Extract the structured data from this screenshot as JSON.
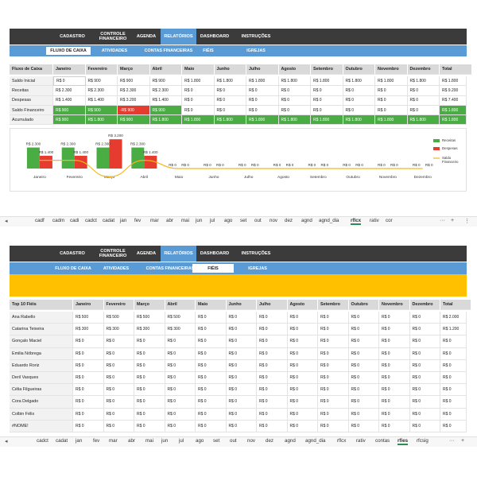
{
  "top": {
    "nav": [
      "CADASTRO",
      "CONTROLE\nFINANCEIRO",
      "AGENDA",
      "RELATÓRIOS",
      "DASHBOARD",
      "INSTRUÇÕES"
    ],
    "active_nav": 3,
    "subnav": [
      "FLUXO DE CAIXA",
      "ATIVIDADES",
      "CONTAS FINANCEIRAS",
      "FIÉIS",
      "IGREJAS"
    ],
    "active_sub": 0,
    "header": [
      "Fluxo de Caixa",
      "Janeiro",
      "Fevereiro",
      "Março",
      "Abril",
      "Maio",
      "Junho",
      "Julho",
      "Agosto",
      "Setembro",
      "Outubro",
      "Novembro",
      "Dezembro",
      "Total"
    ],
    "rows": [
      {
        "label": "Saldo Inicial",
        "cells": [
          "R$ 0",
          "R$ 900",
          "R$ 900",
          "R$ 900",
          "R$ 1.800",
          "R$ 1.800",
          "R$ 1.800",
          "R$ 1.800",
          "R$ 1.800",
          "R$ 1.800",
          "R$ 1.800",
          "R$ 1.800"
        ],
        "total": "R$ 1.800",
        "style": "initial"
      },
      {
        "label": "Receitas",
        "cells": [
          "R$ 2.300",
          "R$ 2.300",
          "R$ 2.300",
          "R$ 2.300",
          "R$ 0",
          "R$ 0",
          "R$ 0",
          "R$ 0",
          "R$ 0",
          "R$ 0",
          "R$ 0",
          "R$ 0"
        ],
        "total": "R$ 9.200",
        "style": "plain"
      },
      {
        "label": "Despesas",
        "cells": [
          "R$ 1.400",
          "R$ 1.400",
          "R$ 3.200",
          "R$ 1.400",
          "R$ 0",
          "R$ 0",
          "R$ 0",
          "R$ 0",
          "R$ 0",
          "R$ 0",
          "R$ 0",
          "R$ 0"
        ],
        "total": "R$ 7.400",
        "style": "plain"
      },
      {
        "label": "Saldo Financeiro",
        "cells": [
          "R$ 900",
          "R$ 900",
          "-R$ 900",
          "R$ 900",
          "R$ 0",
          "R$ 0",
          "R$ 0",
          "R$ 0",
          "R$ 0",
          "R$ 0",
          "R$ 0",
          "R$ 0"
        ],
        "total": "R$ 1.800",
        "style": "saldo"
      },
      {
        "label": "Acumulado",
        "cells": [
          "R$ 900",
          "R$ 1.800",
          "R$ 900",
          "R$ 1.800",
          "R$ 1.800",
          "R$ 1.800",
          "R$ 1.800",
          "R$ 1.800",
          "R$ 1.800",
          "R$ 1.800",
          "R$ 1.800",
          "R$ 1.800"
        ],
        "total": "R$ 1.800",
        "style": "acum"
      }
    ],
    "sheet_tabs": [
      "cadf",
      "cadm",
      "cadi",
      "cadct",
      "cadat",
      "jan",
      "fev",
      "mar",
      "abr",
      "mai",
      "jun",
      "jul",
      "ago",
      "set",
      "out",
      "nov",
      "dez",
      "agnd",
      "agnd_dia",
      "rflcx",
      "rativ",
      "cor"
    ],
    "active_sheet": 19
  },
  "chart_data": {
    "type": "bar",
    "categories": [
      "Janeiro",
      "Fevereiro",
      "Março",
      "Abril",
      "Maio",
      "Junho",
      "Julho",
      "Agosto",
      "Setembro",
      "Outubro",
      "Novembro",
      "Dezembro"
    ],
    "series": [
      {
        "name": "Receitas",
        "values": [
          2300,
          2300,
          2300,
          2300,
          0,
          0,
          0,
          0,
          0,
          0,
          0,
          0
        ],
        "color": "#4aad44"
      },
      {
        "name": "Despesas",
        "values": [
          1400,
          1400,
          3200,
          1400,
          0,
          0,
          0,
          0,
          0,
          0,
          0,
          0
        ],
        "color": "#e63c2f"
      },
      {
        "name": "Saldo Financeiro",
        "values": [
          900,
          900,
          -900,
          900,
          0,
          0,
          0,
          0,
          0,
          0,
          0,
          0
        ],
        "color": "#f2b81c"
      }
    ],
    "bar_labels": {
      "Receitas": [
        "R$ 2.300",
        "R$ 2.300",
        "R$ 2.300",
        "R$ 2.300",
        "R$ 0",
        "R$ 0",
        "R$ 0",
        "R$ 0",
        "R$ 0",
        "R$ 0",
        "R$ 0",
        "R$ 0"
      ],
      "Despesas": [
        "R$ 1.400",
        "R$ 1.400",
        "R$ 3.200",
        "R$ 1.400",
        "R$ 0",
        "R$ 0",
        "R$ 0",
        "R$ 0",
        "R$ 0",
        "R$ 0",
        "R$ 0",
        "R$ 0"
      ]
    },
    "legend": [
      "Receitas",
      "Despesas",
      "Saldo\nFinanceiro"
    ],
    "legend_position": "right"
  },
  "bottom": {
    "nav": [
      "CADASTRO",
      "CONTROLE\nFINANCEIRO",
      "AGENDA",
      "RELATÓRIOS",
      "DASHBOARD",
      "INSTRUÇÕES"
    ],
    "active_nav": 3,
    "subnav": [
      "FLUXO DE CAIXA",
      "ATIVIDADES",
      "CONTAS FINANCEIRAS",
      "FIÉIS",
      "IGREJAS"
    ],
    "active_sub": 3,
    "banner_color": "#ffc000",
    "header": [
      "Top 10 Fiéis",
      "Janeiro",
      "Fevereiro",
      "Março",
      "Abril",
      "Maio",
      "Junho",
      "Julho",
      "Agosto",
      "Setembro",
      "Outubro",
      "Novembro",
      "Dezembro",
      "Total"
    ],
    "rows": [
      {
        "label": "Ana Rabello",
        "cells": [
          "R$ 500",
          "R$ 500",
          "R$ 500",
          "R$ 500",
          "R$ 0",
          "R$ 0",
          "R$ 0",
          "R$ 0",
          "R$ 0",
          "R$ 0",
          "R$ 0",
          "R$ 0"
        ],
        "total": "R$ 2.000"
      },
      {
        "label": "Catarina Teixeira",
        "cells": [
          "R$ 300",
          "R$ 300",
          "R$ 300",
          "R$ 300",
          "R$ 0",
          "R$ 0",
          "R$ 0",
          "R$ 0",
          "R$ 0",
          "R$ 0",
          "R$ 0",
          "R$ 0"
        ],
        "total": "R$ 1.200"
      },
      {
        "label": "Gonçalo Maciel",
        "cells": [
          "R$ 0",
          "R$ 0",
          "R$ 0",
          "R$ 0",
          "R$ 0",
          "R$ 0",
          "R$ 0",
          "R$ 0",
          "R$ 0",
          "R$ 0",
          "R$ 0",
          "R$ 0"
        ],
        "total": "R$ 0"
      },
      {
        "label": "Emilia Nóbrega",
        "cells": [
          "R$ 0",
          "R$ 0",
          "R$ 0",
          "R$ 0",
          "R$ 0",
          "R$ 0",
          "R$ 0",
          "R$ 0",
          "R$ 0",
          "R$ 0",
          "R$ 0",
          "R$ 0"
        ],
        "total": "R$ 0"
      },
      {
        "label": "Eduardo Roriz",
        "cells": [
          "R$ 0",
          "R$ 0",
          "R$ 0",
          "R$ 0",
          "R$ 0",
          "R$ 0",
          "R$ 0",
          "R$ 0",
          "R$ 0",
          "R$ 0",
          "R$ 0",
          "R$ 0"
        ],
        "total": "R$ 0"
      },
      {
        "label": "Deril Vasques",
        "cells": [
          "R$ 0",
          "R$ 0",
          "R$ 0",
          "R$ 0",
          "R$ 0",
          "R$ 0",
          "R$ 0",
          "R$ 0",
          "R$ 0",
          "R$ 0",
          "R$ 0",
          "R$ 0"
        ],
        "total": "R$ 0"
      },
      {
        "label": "Célia Filgueiras",
        "cells": [
          "R$ 0",
          "R$ 0",
          "R$ 0",
          "R$ 0",
          "R$ 0",
          "R$ 0",
          "R$ 0",
          "R$ 0",
          "R$ 0",
          "R$ 0",
          "R$ 0",
          "R$ 0"
        ],
        "total": "R$ 0"
      },
      {
        "label": "Cora Delgado",
        "cells": [
          "R$ 0",
          "R$ 0",
          "R$ 0",
          "R$ 0",
          "R$ 0",
          "R$ 0",
          "R$ 0",
          "R$ 0",
          "R$ 0",
          "R$ 0",
          "R$ 0",
          "R$ 0"
        ],
        "total": "R$ 0"
      },
      {
        "label": "Colbin Félix",
        "cells": [
          "R$ 0",
          "R$ 0",
          "R$ 0",
          "R$ 0",
          "R$ 0",
          "R$ 0",
          "R$ 0",
          "R$ 0",
          "R$ 0",
          "R$ 0",
          "R$ 0",
          "R$ 0"
        ],
        "total": "R$ 0"
      },
      {
        "label": "#NOME!",
        "cells": [
          "R$ 0",
          "R$ 0",
          "R$ 0",
          "R$ 0",
          "R$ 0",
          "R$ 0",
          "R$ 0",
          "R$ 0",
          "R$ 0",
          "R$ 0",
          "R$ 0",
          "R$ 0"
        ],
        "total": "R$ 0"
      }
    ],
    "sheet_tabs": [
      "cadct",
      "cadat",
      "jan",
      "fev",
      "mar",
      "abr",
      "mai",
      "jun",
      "jul",
      "ago",
      "set",
      "out",
      "nov",
      "dez",
      "agnd",
      "agnd_dia",
      "rflcx",
      "rativ",
      "contas",
      "rfies",
      "rfcsig"
    ],
    "active_sheet": 19
  }
}
